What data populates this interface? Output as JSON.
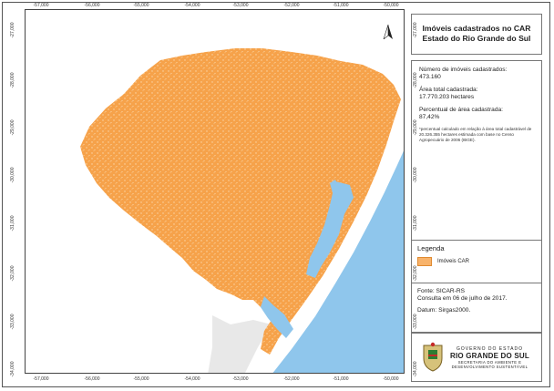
{
  "colors": {
    "map_land_fill": "#f6a24a",
    "map_ocean": "#8fc6ec",
    "map_background": "#ffffff",
    "neighbor_land": "#e6e6e6",
    "legend_swatch": "#f8b36b"
  },
  "ticks": {
    "longitude": [
      "-57,000",
      "-56,000",
      "-55,000",
      "-54,000",
      "-53,000",
      "-52,000",
      "-51,000",
      "-50,000"
    ],
    "latitude": [
      "-27,000",
      "-28,000",
      "-29,000",
      "-30,000",
      "-31,000",
      "-32,000",
      "-33,000",
      "-34,000"
    ]
  },
  "map": {
    "north_arrow": "north-arrow-icon"
  },
  "title": {
    "line1": "Imóveis cadastrados no CAR",
    "line2": "Estado do Rio Grande do Sul"
  },
  "info": {
    "count_label": "Número de imóveis cadastrados:",
    "count_value": "473.160",
    "area_label": "Área total cadastrada:",
    "area_value": "17.770.203 hectares",
    "pct_label": "Percentual de área cadastrada:",
    "pct_value": "87,42%",
    "note": "*percentual calculado em relação à área total cadastrável de 20.326.355 hectares estimada com base no Censo Agropecuário de 2006 (IBGE)."
  },
  "legend": {
    "title": "Legenda",
    "item": "Imóveis CAR"
  },
  "source": {
    "fonte": "Fonte: SICAR-RS",
    "consulta": "Consulta em 06 de julho de 2017.",
    "datum": "Datum: Sirgas2000."
  },
  "logo": {
    "line1": "GOVERNO DO ESTADO",
    "line2": "RIO GRANDE DO SUL",
    "line3": "SECRETARIA DO AMBIENTE E",
    "line4": "DESENVOLVIMENTO SUSTENTÁVEL"
  }
}
